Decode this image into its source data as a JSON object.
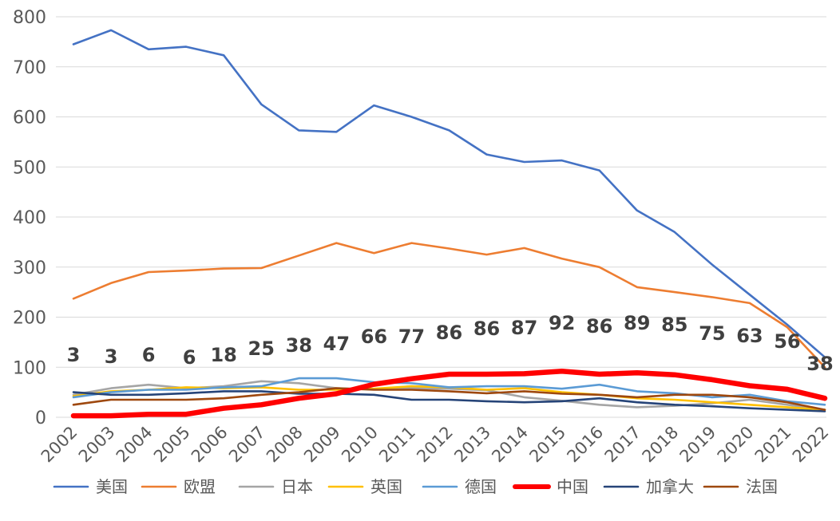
{
  "chart_data": {
    "type": "line",
    "title": "",
    "xlabel": "",
    "ylabel": "",
    "ylim": [
      0,
      800
    ],
    "yticks": [
      0,
      100,
      200,
      300,
      400,
      500,
      600,
      700,
      800
    ],
    "grid": true,
    "legend": "bottom",
    "x": [
      "2002",
      "2003",
      "2004",
      "2005",
      "2006",
      "2007",
      "2008",
      "2009",
      "2010",
      "2011",
      "2012",
      "2013",
      "2014",
      "2015",
      "2016",
      "2017",
      "2018",
      "2019",
      "2020",
      "2021",
      "2022"
    ],
    "series": [
      {
        "name": "美国",
        "color": "#4472C4",
        "values": [
          745,
          773,
          735,
          740,
          723,
          625,
          573,
          570,
          623,
          600,
          573,
          525,
          510,
          513,
          493,
          413,
          370,
          305,
          245,
          185,
          120
        ]
      },
      {
        "name": "欧盟",
        "color": "#ED7D31",
        "values": [
          237,
          268,
          290,
          293,
          297,
          298,
          323,
          348,
          328,
          348,
          337,
          325,
          338,
          317,
          300,
          260,
          250,
          240,
          228,
          180,
          100
        ]
      },
      {
        "name": "日本",
        "color": "#A5A5A5",
        "values": [
          45,
          58,
          65,
          58,
          62,
          72,
          68,
          58,
          56,
          58,
          57,
          54,
          40,
          33,
          25,
          20,
          23,
          28,
          35,
          25,
          15
        ]
      },
      {
        "name": "英国",
        "color": "#FFC000",
        "values": [
          42,
          52,
          55,
          60,
          58,
          60,
          55,
          55,
          57,
          62,
          60,
          55,
          58,
          50,
          45,
          38,
          35,
          30,
          25,
          20,
          15
        ]
      },
      {
        "name": "德国",
        "color": "#5B9BD5",
        "values": [
          40,
          50,
          55,
          55,
          60,
          62,
          78,
          78,
          70,
          68,
          60,
          62,
          62,
          57,
          65,
          52,
          48,
          40,
          45,
          32,
          25
        ]
      },
      {
        "name": "中国",
        "color": "#FF0000",
        "values": [
          3,
          3,
          6,
          6,
          18,
          25,
          38,
          47,
          66,
          77,
          86,
          86,
          87,
          92,
          86,
          89,
          85,
          75,
          63,
          56,
          38
        ]
      },
      {
        "name": "加拿大",
        "color": "#264478",
        "values": [
          50,
          45,
          45,
          48,
          52,
          52,
          47,
          47,
          45,
          35,
          35,
          32,
          30,
          32,
          38,
          30,
          25,
          22,
          18,
          15,
          12
        ]
      },
      {
        "name": "法国",
        "color": "#9E480E",
        "values": [
          25,
          35,
          35,
          35,
          38,
          45,
          50,
          58,
          55,
          55,
          52,
          48,
          52,
          47,
          45,
          40,
          45,
          45,
          40,
          30,
          15
        ]
      }
    ],
    "data_labels": {
      "series": "中国",
      "values": [
        "3",
        "3",
        "6",
        "6",
        "18",
        "25",
        "38",
        "47",
        "66",
        "77",
        "86",
        "86",
        "87",
        "92",
        "86",
        "89",
        "85",
        "75",
        "63",
        "56",
        "38"
      ]
    }
  }
}
